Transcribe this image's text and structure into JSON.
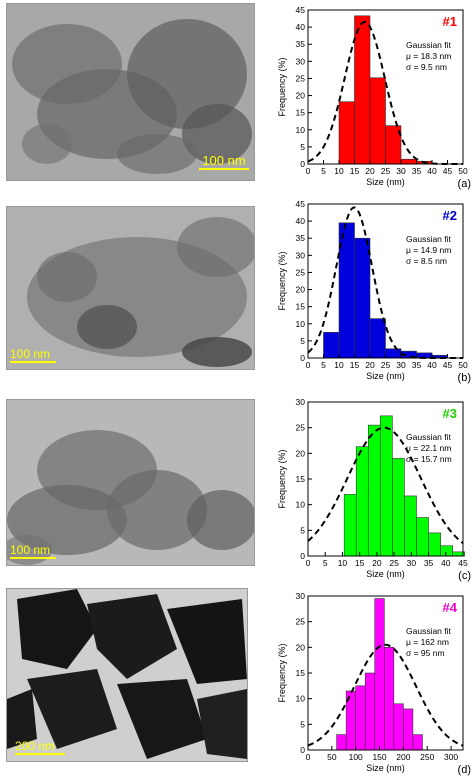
{
  "chart_data": [
    {
      "type": "bar",
      "panel_label": "(a)",
      "sample_label": "#1",
      "sample_color": "#ff0000",
      "bar_color": "#ff0000",
      "scale_bar_label": "100 nm",
      "xlabel": "Size (nm)",
      "ylabel": "Frequency (%)",
      "xlim": [
        0,
        50
      ],
      "ylim": [
        0,
        45
      ],
      "xticks": [
        0,
        5,
        10,
        15,
        20,
        25,
        30,
        35,
        40,
        45,
        50
      ],
      "yticks": [
        0,
        5,
        10,
        15,
        20,
        25,
        30,
        35,
        40,
        45
      ],
      "bin_width": 5,
      "bin_centers": [
        12.5,
        17.5,
        22.5,
        27.5,
        32.5,
        37.5
      ],
      "values": [
        18.2,
        43.3,
        25.2,
        11.2,
        1.4,
        0.8
      ],
      "fit": {
        "title": "Gaussian fit",
        "mu_label": "μ = 18.3 nm",
        "sigma_label": "σ = 9.5 nm",
        "mu": 18.3,
        "sigma": 9.5,
        "peak": 41.5
      }
    },
    {
      "type": "bar",
      "panel_label": "(b)",
      "sample_label": "#2",
      "sample_color": "#0000cc",
      "bar_color": "#0000dd",
      "scale_bar_label": "100 nm",
      "xlabel": "Size (nm)",
      "ylabel": "Frequency (%)",
      "xlim": [
        0,
        50
      ],
      "ylim": [
        0,
        45
      ],
      "xticks": [
        0,
        5,
        10,
        15,
        20,
        25,
        30,
        35,
        40,
        45,
        50
      ],
      "yticks": [
        0,
        5,
        10,
        15,
        20,
        25,
        30,
        35,
        40,
        45
      ],
      "bin_width": 5,
      "bin_centers": [
        7.5,
        12.5,
        17.5,
        22.5,
        27.5,
        32.5,
        37.5,
        42.5
      ],
      "values": [
        7.5,
        39.5,
        35.0,
        11.5,
        2.7,
        2.0,
        1.5,
        0.8
      ],
      "fit": {
        "title": "Gaussian fit",
        "mu_label": "μ = 14.9 nm",
        "sigma_label": "σ = 8.5 nm",
        "mu": 14.9,
        "sigma": 8.5,
        "peak": 44.0
      }
    },
    {
      "type": "bar",
      "panel_label": "(c)",
      "sample_label": "#3",
      "sample_color": "#22cc00",
      "bar_color": "#00ff00",
      "scale_bar_label": "100 nm",
      "xlabel": "Size (nm)",
      "ylabel": "Frequency (%)",
      "xlim": [
        0,
        45
      ],
      "ylim": [
        0,
        30
      ],
      "xticks": [
        0,
        5,
        10,
        15,
        20,
        25,
        30,
        35,
        40,
        45
      ],
      "yticks": [
        0,
        5,
        10,
        15,
        20,
        25,
        30
      ],
      "bin_width": 3.5,
      "bin_centers": [
        12.25,
        15.75,
        19.25,
        22.75,
        26.25,
        29.75,
        33.25,
        36.75,
        40.25,
        43.75
      ],
      "values": [
        12.0,
        21.3,
        25.5,
        27.3,
        19.0,
        11.7,
        7.5,
        4.5,
        2.0,
        0.8
      ],
      "fit": {
        "title": "Gaussian fit",
        "mu_label": "μ = 22.1 nm",
        "sigma_label": "σ = 15.7 nm",
        "mu": 22.1,
        "sigma": 15.7,
        "peak": 25.0
      }
    },
    {
      "type": "bar",
      "panel_label": "(d)",
      "sample_label": "#4",
      "sample_color": "#ee00cc",
      "bar_color": "#ff00ff",
      "scale_bar_label": "200 nm",
      "xlabel": "Size (nm)",
      "ylabel": "Frequency (%)",
      "xlim": [
        0,
        325
      ],
      "ylim": [
        0,
        30
      ],
      "xticks": [
        0,
        50,
        100,
        150,
        200,
        250,
        300
      ],
      "yticks": [
        0,
        5,
        10,
        15,
        20,
        25,
        30
      ],
      "bin_width": 20,
      "bin_centers": [
        70,
        90,
        110,
        130,
        150,
        170,
        190,
        210,
        230
      ],
      "values": [
        3.0,
        11.5,
        12.5,
        15.0,
        29.5,
        20.0,
        9.0,
        8.0,
        3.0
      ],
      "fit": {
        "title": "Gaussian fit",
        "mu_label": "μ = 162 nm",
        "sigma_label": "σ = 95 nm",
        "mu": 162,
        "sigma": 95,
        "peak": 20.5
      }
    }
  ]
}
